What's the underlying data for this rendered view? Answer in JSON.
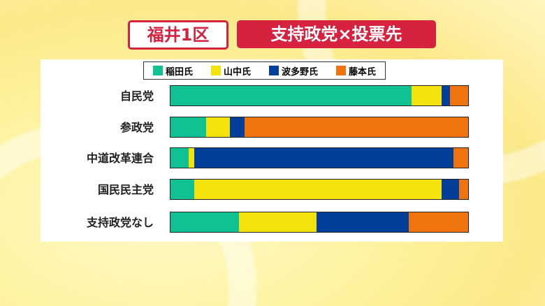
{
  "title_left": "福井1区",
  "title_right": "支持政党×投票先",
  "chart_data": {
    "type": "bar",
    "stacked": true,
    "orientation": "horizontal",
    "unit": "percent",
    "categories": [
      "自民党",
      "参政党",
      "中道改革連合",
      "国民民主党",
      "支持政党なし"
    ],
    "series": [
      {
        "name": "稲田氏",
        "color": "#10c194",
        "values": [
          81,
          12,
          6,
          8,
          23
        ]
      },
      {
        "name": "山中氏",
        "color": "#f4e20c",
        "values": [
          10,
          8,
          2,
          83,
          26
        ]
      },
      {
        "name": "波多野氏",
        "color": "#023f9a",
        "values": [
          3,
          5,
          87,
          6,
          31
        ]
      },
      {
        "name": "藤本氏",
        "color": "#f0740e",
        "values": [
          6,
          75,
          5,
          3,
          20
        ]
      }
    ],
    "legend": "top"
  }
}
